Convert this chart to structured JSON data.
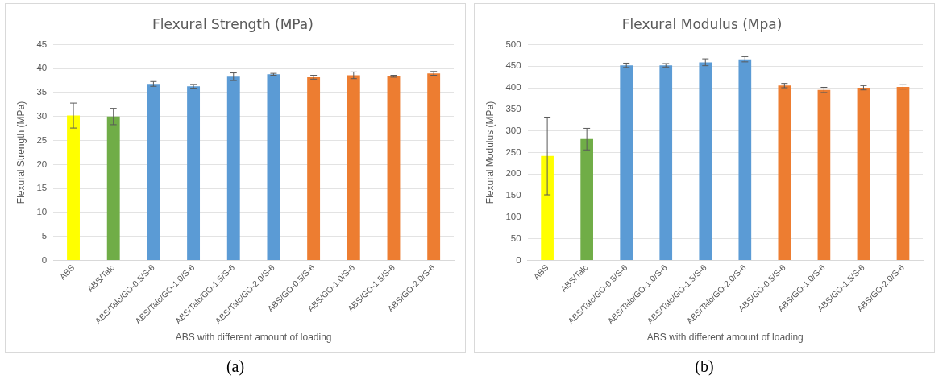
{
  "chart_data": [
    {
      "type": "bar",
      "title": "Flexural Strength (MPa)",
      "xlabel": "ABS with different amount of loading",
      "ylabel": "Flexural Strength (MPa)",
      "categories": [
        "ABS",
        "ABS/Talc",
        "ABS/Talc/GO-0.5/S-6",
        "ABS/Talc/GO-1.0/S-6",
        "ABS/Talc/GO-1.5/S-6",
        "ABS/Talc/GO-2.0/S-6",
        "ABS/GO-0.5/S-6",
        "ABS/GO-1.0/S-6",
        "ABS/GO-1.5/S-6",
        "ABS/GO-2.0/S-6"
      ],
      "values": [
        30.2,
        30.0,
        36.8,
        36.3,
        38.3,
        38.8,
        38.2,
        38.6,
        38.4,
        39.0
      ],
      "errors": [
        2.6,
        1.7,
        0.5,
        0.4,
        0.8,
        0.2,
        0.4,
        0.7,
        0.2,
        0.4
      ],
      "colors": [
        "#ffff00",
        "#70ad47",
        "#5b9bd5",
        "#5b9bd5",
        "#5b9bd5",
        "#5b9bd5",
        "#ed7d31",
        "#ed7d31",
        "#ed7d31",
        "#ed7d31"
      ],
      "ylim": [
        0,
        45
      ],
      "yticks": [
        0,
        5,
        10,
        15,
        20,
        25,
        30,
        35,
        40,
        45
      ],
      "grid": "y",
      "legend": false,
      "annotations": [
        "(a)"
      ]
    },
    {
      "type": "bar",
      "title": "Flexural Modulus (Mpa)",
      "xlabel": "ABS with different amount of loading",
      "ylabel": "Flexural Modulus (MPa)",
      "categories": [
        "ABS",
        "ABS/Talc",
        "ABS/Talc/GO-0.5/S-6",
        "ABS/Talc/GO-1.0/S-6",
        "ABS/Talc/GO-1.5/S-6",
        "ABS/Talc/GO-2.0/S-6",
        "ABS/GO-0.5/S-6",
        "ABS/GO-1.0/S-6",
        "ABS/GO-1.5/S-6",
        "ABS/GO-2.0/S-6"
      ],
      "values": [
        242,
        281,
        452,
        452,
        459,
        466,
        405,
        395,
        400,
        402
      ],
      "errors": [
        90,
        25,
        5,
        4,
        8,
        6,
        5,
        6,
        5,
        5
      ],
      "colors": [
        "#ffff00",
        "#70ad47",
        "#5b9bd5",
        "#5b9bd5",
        "#5b9bd5",
        "#5b9bd5",
        "#ed7d31",
        "#ed7d31",
        "#ed7d31",
        "#ed7d31"
      ],
      "ylim": [
        0,
        500
      ],
      "yticks": [
        0,
        50,
        100,
        150,
        200,
        250,
        300,
        350,
        400,
        450,
        500
      ],
      "grid": "y",
      "legend": false,
      "annotations": [
        "(b)"
      ]
    }
  ]
}
